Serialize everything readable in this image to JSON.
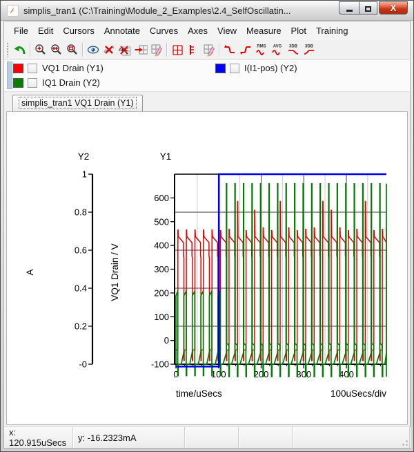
{
  "window": {
    "title": "simplis_tran1 (C:\\Training\\Module_2_Examples\\2.4_SelfOscillatin...",
    "buttons": {
      "minimize": "minimize",
      "maximize": "maximize",
      "close": "X"
    }
  },
  "menu": {
    "items": [
      "File",
      "Edit",
      "Cursors",
      "Annotate",
      "Curves",
      "Axes",
      "View",
      "Measure",
      "Plot",
      "Training"
    ]
  },
  "toolbar": {
    "groups": [
      [
        {
          "name": "undo"
        }
      ],
      [
        {
          "name": "zoom-in"
        },
        {
          "name": "zoom-x"
        },
        {
          "name": "zoom-rect"
        }
      ],
      [
        {
          "name": "show-curve"
        },
        {
          "name": "delete-curve"
        },
        {
          "name": "delete-text",
          "text": "ABC"
        },
        {
          "name": "move-curve"
        },
        {
          "name": "edit-grid"
        }
      ],
      [
        {
          "name": "add-grid"
        },
        {
          "name": "add-axis"
        },
        {
          "name": "new-grid"
        }
      ],
      [
        {
          "name": "falling-edge"
        },
        {
          "name": "rising-edge"
        },
        {
          "name": "rms",
          "text": "RMS"
        },
        {
          "name": "avg",
          "text": "AVG"
        },
        {
          "name": "lowpass-3db",
          "text": "3DB"
        },
        {
          "name": "highpass-3db",
          "text": "3DB"
        }
      ]
    ]
  },
  "legend": {
    "series": [
      {
        "label": "VQ1 Drain (Y1)",
        "color": "#ff0000",
        "checked": false
      },
      {
        "label": "IQ1 Drain (Y2)",
        "color": "#008000",
        "checked": false
      },
      {
        "label": "I(I1-pos) (Y2)",
        "color": "#0000ff",
        "checked": false
      }
    ]
  },
  "tab": {
    "label": "simplis_tran1 VQ1 Drain (Y1)"
  },
  "status": {
    "cells": [
      {
        "text": "x: 120.915uSecs"
      },
      {
        "text": "y: -16.2323mA"
      },
      {
        "text": ""
      },
      {
        "text": ""
      },
      {
        "text": ""
      }
    ]
  },
  "chart_data": {
    "type": "line",
    "x_axis": {
      "label": "time/uSecs",
      "scale_label": "100uSecs/div",
      "min": 0,
      "max": 494,
      "major_ticks": [
        0,
        100,
        200,
        300,
        400
      ],
      "minor_step": 20,
      "grid_step": 50
    },
    "y1_axis": {
      "name": "Y1",
      "label": "VQ1 Drain / V",
      "min": -100,
      "max": 700,
      "tick_labels": [
        "-100",
        "0",
        "100",
        "200",
        "300",
        "400",
        "500",
        "600"
      ],
      "tick_step": 100
    },
    "y2_axis": {
      "name": "Y2",
      "label": "A",
      "min": 0,
      "max": 1,
      "tick_labels": [
        "-0",
        "0.2",
        "0.4",
        "0.6",
        "0.8",
        "1"
      ],
      "tick_step": 0.2
    },
    "series": [
      {
        "name": "VQ1 Drain",
        "axis": "Y1",
        "color": "#e60000",
        "waveform": {
          "kind": "switching-drain-voltage",
          "period": 20,
          "rise_at": 4.5,
          "fall_at": 17.6,
          "v_low": -40,
          "v_dip": -85,
          "plateau_start": 437,
          "plateau_end": 412,
          "v_notch": 355,
          "spike_pre": 465,
          "spike_post_normal": 462,
          "spike_post_tall": 585,
          "spike_post_mid": 548,
          "mode_change_at": 100
        }
      },
      {
        "name": "IQ1 Drain",
        "axis": "Y2",
        "color": "#007b00",
        "waveform": {
          "kind": "switch-current",
          "period": 20,
          "pulse_at": 18.4,
          "peak_pre": 0.385,
          "base_pre": 0.36,
          "peak_post": 0.95,
          "shelf_post": 0.11,
          "ramp_peak": 0.065,
          "dip": -0.06,
          "mode_change_at": 100
        }
      },
      {
        "name": "I(I1-pos)",
        "axis": "Y2",
        "color": "#0000e6",
        "waveform": {
          "kind": "step",
          "level_before": -0.012,
          "level_after": 1.0,
          "step_at": 100.8
        }
      }
    ],
    "grid": {
      "h_divisions_y2": [
        0.2,
        0.4,
        0.6,
        0.8
      ],
      "top_line_y2": 1.0,
      "v_light_step_us": 50,
      "v_dark_step_us": 100
    }
  }
}
